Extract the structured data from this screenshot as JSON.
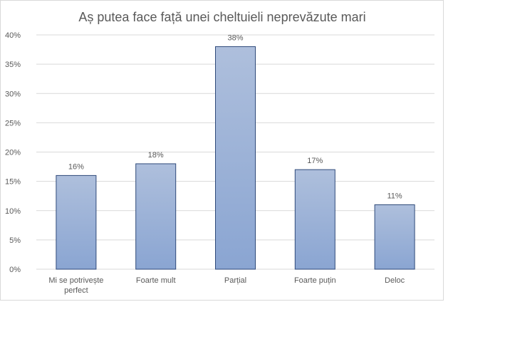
{
  "chart_data": {
    "type": "bar",
    "title": "Aș putea face față unei cheltuieli  neprevăzute mari",
    "xlabel": "",
    "ylabel": "",
    "categories": [
      "Mi se potrivește perfect",
      "Foarte mult",
      "Parțial",
      "Foarte puțin",
      "Deloc"
    ],
    "category_lines": [
      [
        "Mi se potrivește",
        "perfect"
      ],
      [
        "Foarte mult"
      ],
      [
        "Parțial"
      ],
      [
        "Foarte puțin"
      ],
      [
        "Deloc"
      ]
    ],
    "values": [
      16,
      18,
      38,
      17,
      11
    ],
    "value_labels": [
      "16%",
      "18%",
      "38%",
      "17%",
      "11%"
    ],
    "ylim": [
      0,
      40
    ],
    "yticks": [
      0,
      5,
      10,
      15,
      20,
      25,
      30,
      35,
      40
    ],
    "ytick_labels": [
      "0%",
      "5%",
      "10%",
      "15%",
      "20%",
      "25%",
      "30%",
      "35%",
      "40%"
    ],
    "grid": true,
    "legend": "none",
    "colors": {
      "bar_top": "#aebfdc",
      "bar_bottom": "#8aa5d2",
      "bar_stroke": "#2f4a7a",
      "grid": "#d9d9d9",
      "text": "#595959"
    }
  }
}
